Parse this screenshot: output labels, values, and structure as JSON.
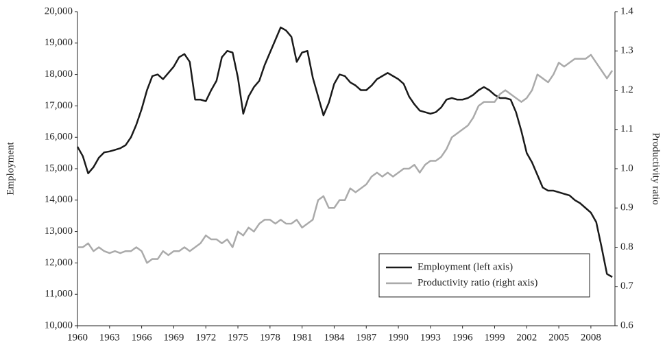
{
  "chart_data": {
    "type": "line",
    "y_label": "Employment",
    "y2_label": "Productivity ratio",
    "x": [
      1960,
      1960.5,
      1961,
      1961.5,
      1962,
      1962.5,
      1963,
      1963.5,
      1964,
      1964.5,
      1965,
      1965.5,
      1966,
      1966.5,
      1967,
      1967.5,
      1968,
      1968.5,
      1969,
      1969.5,
      1970,
      1970.5,
      1971,
      1971.5,
      1972,
      1972.5,
      1973,
      1973.5,
      1974,
      1974.5,
      1975,
      1975.5,
      1976,
      1976.5,
      1977,
      1977.5,
      1978,
      1978.5,
      1979,
      1979.5,
      1980,
      1980.5,
      1981,
      1981.5,
      1982,
      1982.5,
      1983,
      1983.5,
      1984,
      1984.5,
      1985,
      1985.5,
      1986,
      1986.5,
      1987,
      1987.5,
      1988,
      1988.5,
      1989,
      1989.5,
      1990,
      1990.5,
      1991,
      1991.5,
      1992,
      1992.5,
      1993,
      1993.5,
      1994,
      1994.5,
      1995,
      1995.5,
      1996,
      1996.5,
      1997,
      1997.5,
      1998,
      1998.5,
      1999,
      1999.5,
      2000,
      2000.5,
      2001,
      2001.5,
      2002,
      2002.5,
      2003,
      2003.5,
      2004,
      2004.5,
      2005,
      2005.5,
      2006,
      2006.5,
      2007,
      2007.5,
      2008,
      2008.5,
      2009,
      2009.5,
      2010
    ],
    "series": [
      {
        "name": "Employment (left axis)",
        "color": "#1a1a1a",
        "values": [
          15700,
          15400,
          14850,
          15050,
          15350,
          15520,
          15550,
          15600,
          15650,
          15750,
          16000,
          16400,
          16900,
          17500,
          17950,
          18000,
          17850,
          18050,
          18250,
          18550,
          18650,
          18400,
          17200,
          17200,
          17150,
          17500,
          17800,
          18550,
          18750,
          18700,
          17900,
          16750,
          17300,
          17600,
          17800,
          18300,
          18700,
          19100,
          19500,
          19400,
          19200,
          18400,
          18700,
          18750,
          17900,
          17300,
          16700,
          17100,
          17700,
          18000,
          17950,
          17750,
          17650,
          17500,
          17500,
          17650,
          17850,
          17950,
          18050,
          17950,
          17850,
          17700,
          17300,
          17050,
          16850,
          16800,
          16750,
          16800,
          16950,
          17200,
          17250,
          17200,
          17200,
          17250,
          17350,
          17500,
          17600,
          17500,
          17350,
          17250,
          17250,
          17200,
          16800,
          16200,
          15500,
          15200,
          14800,
          14400,
          14300,
          14300,
          14250,
          14200,
          14150,
          14000,
          13900,
          13750,
          13600,
          13300,
          12500,
          11650,
          11550
        ]
      },
      {
        "name": "Productivity ratio (right axis)",
        "color": "#aaaaaa",
        "axis": "y2",
        "values": [
          0.8,
          0.8,
          0.81,
          0.79,
          0.8,
          0.79,
          0.785,
          0.79,
          0.785,
          0.79,
          0.79,
          0.8,
          0.79,
          0.76,
          0.77,
          0.77,
          0.79,
          0.78,
          0.79,
          0.79,
          0.8,
          0.79,
          0.8,
          0.81,
          0.83,
          0.82,
          0.82,
          0.81,
          0.82,
          0.8,
          0.84,
          0.83,
          0.85,
          0.84,
          0.86,
          0.87,
          0.87,
          0.86,
          0.87,
          0.86,
          0.86,
          0.87,
          0.85,
          0.86,
          0.87,
          0.92,
          0.93,
          0.9,
          0.9,
          0.92,
          0.92,
          0.95,
          0.94,
          0.95,
          0.96,
          0.98,
          0.99,
          0.98,
          0.99,
          0.98,
          0.99,
          1.0,
          1.0,
          1.01,
          0.99,
          1.01,
          1.02,
          1.02,
          1.03,
          1.05,
          1.08,
          1.09,
          1.1,
          1.11,
          1.13,
          1.16,
          1.17,
          1.17,
          1.17,
          1.19,
          1.2,
          1.19,
          1.18,
          1.17,
          1.18,
          1.2,
          1.24,
          1.23,
          1.22,
          1.24,
          1.27,
          1.26,
          1.27,
          1.28,
          1.28,
          1.28,
          1.29,
          1.27,
          1.25,
          1.23,
          1.25
        ]
      }
    ],
    "xlim": [
      1960,
      2010.25
    ],
    "xticks": [
      1960,
      1963,
      1966,
      1969,
      1972,
      1975,
      1978,
      1981,
      1984,
      1987,
      1990,
      1993,
      1996,
      1999,
      2002,
      2005,
      2008
    ],
    "ylim": [
      10000,
      20000
    ],
    "yticks": [
      {
        "value": 10000,
        "label": "10,000"
      },
      {
        "value": 11000,
        "label": "11,000"
      },
      {
        "value": 12000,
        "label": "12,000"
      },
      {
        "value": 13000,
        "label": "13,000"
      },
      {
        "value": 14000,
        "label": "14,000"
      },
      {
        "value": 15000,
        "label": "15,000"
      },
      {
        "value": 16000,
        "label": "16,000"
      },
      {
        "value": 17000,
        "label": "17,000"
      },
      {
        "value": 18000,
        "label": "18,000"
      },
      {
        "value": 19000,
        "label": "19,000"
      },
      {
        "value": 20000,
        "label": "20,000"
      }
    ],
    "y2lim": [
      0.6,
      1.4
    ],
    "y2ticks": [
      0.6,
      0.7,
      0.8,
      0.9,
      {
        "value": 1,
        "label": "1.0"
      },
      1.1,
      1.2,
      1.3,
      1.4
    ],
    "legend": "lower right"
  }
}
